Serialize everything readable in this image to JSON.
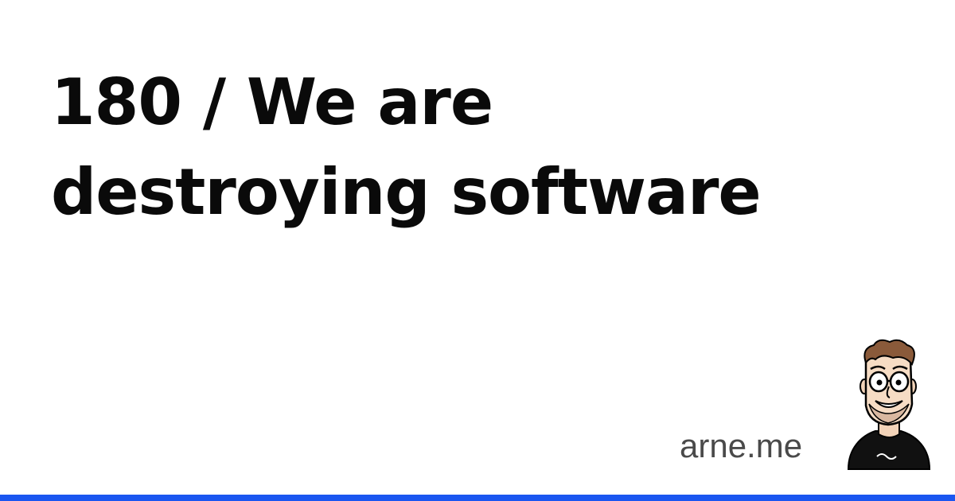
{
  "title": {
    "line1": "180 / We are",
    "line2": "destroying software"
  },
  "site": "arne.me",
  "avatar": {
    "icon": "cartoon-portrait-icon"
  },
  "colors": {
    "background": "#ffffff",
    "text": "#0a0a0a",
    "site_text": "#4a4a4a",
    "accent_bar": "#1a56f0"
  }
}
